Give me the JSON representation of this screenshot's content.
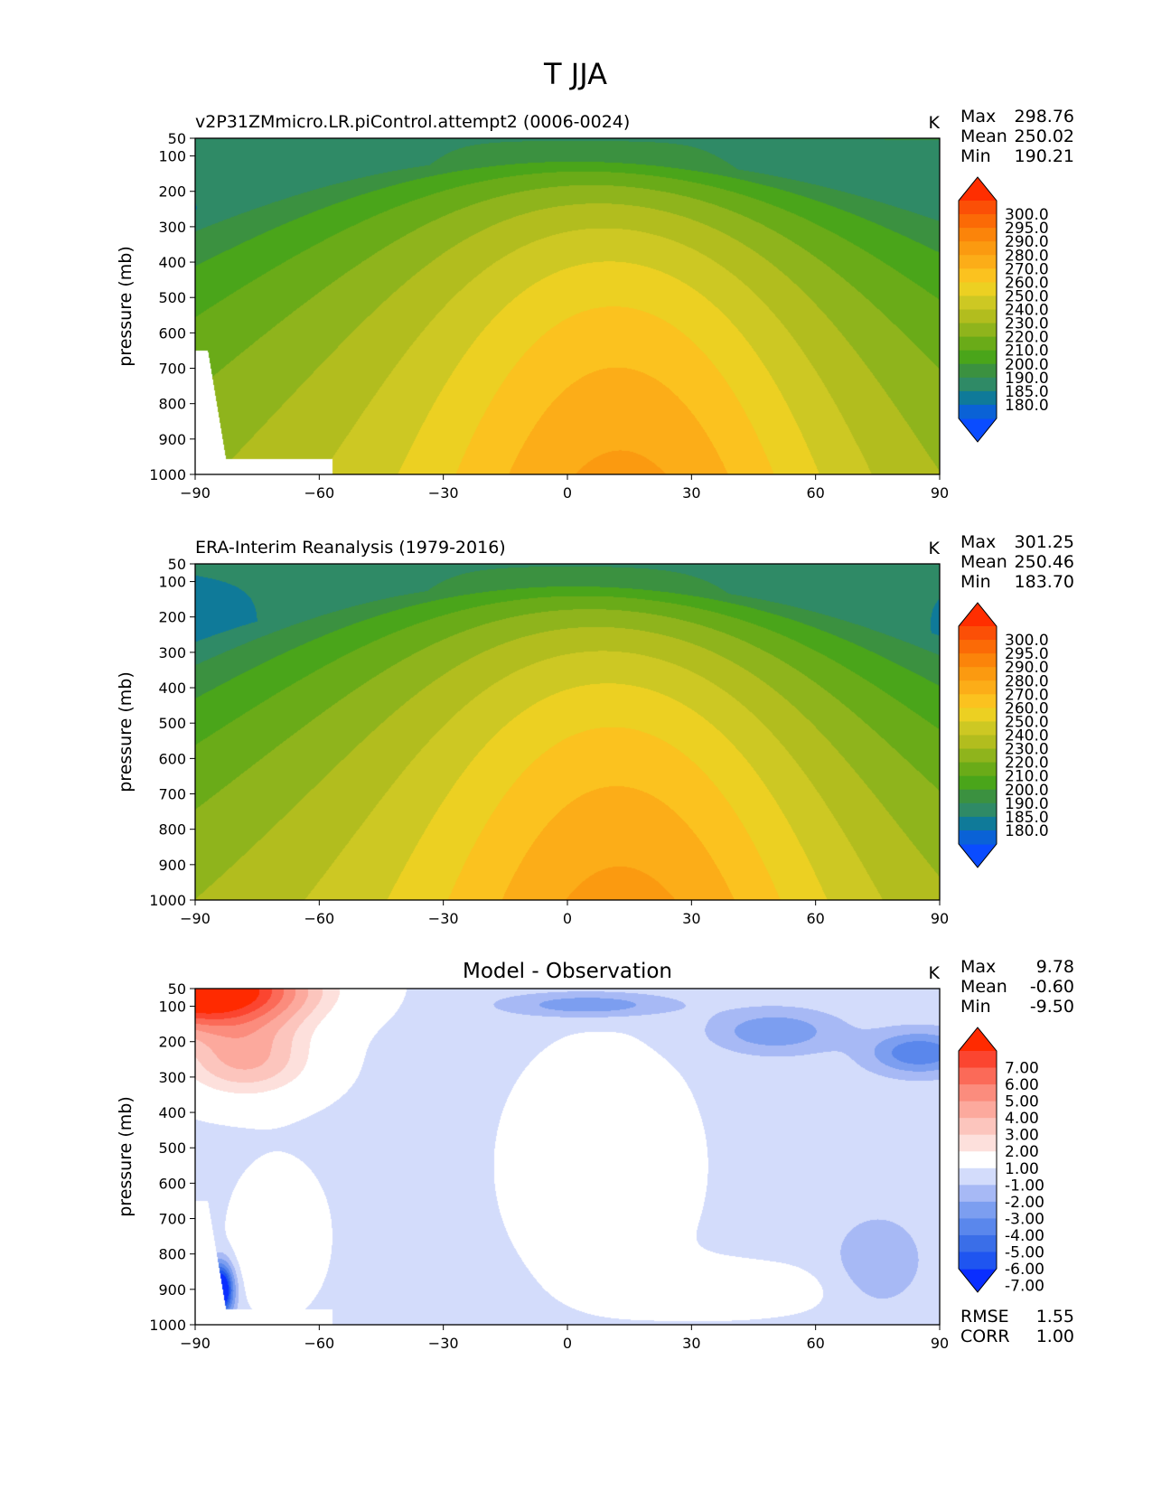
{
  "figure_title": "T JJA",
  "palette": {
    "abs": [
      "#0a4cff",
      "#0a62d6",
      "#0f7a99",
      "#2f8a66",
      "#3b9140",
      "#4aa51a",
      "#6aab18",
      "#8fb41c",
      "#b2bd1e",
      "#cdc823",
      "#ecd022",
      "#fbc21f",
      "#fcad18",
      "#fb9a10",
      "#fb840a",
      "#fb6a06",
      "#fb4f06",
      "#ff2e00"
    ],
    "diff": [
      "#0a2eff",
      "#1f55f0",
      "#3a6ee8",
      "#5a87ec",
      "#7c9ef0",
      "#a7b9f5",
      "#d3dcfb",
      "#ffffff",
      "#fde0dc",
      "#fcc5bd",
      "#fca99d",
      "#fb8c7d",
      "#fb6a58",
      "#fb4530",
      "#ff2a00"
    ]
  },
  "chart_data": [
    {
      "type": "contour",
      "title": "v2P31ZMmicro.LR.piControl.attempt2 (0006-0024)",
      "units": "K",
      "ylabel": "pressure (mb)",
      "xlim": [
        -90,
        90
      ],
      "ylim": [
        1000,
        50
      ],
      "x_ticks": [
        "−90",
        "−60",
        "−30",
        "0",
        "30",
        "60",
        "90"
      ],
      "y_ticks": [
        "50",
        "100",
        "200",
        "300",
        "400",
        "500",
        "600",
        "700",
        "800",
        "900",
        "1000"
      ],
      "stats": {
        "max_label": "Max",
        "max": "298.76",
        "mean_label": "Mean",
        "mean": "250.02",
        "min_label": "Min",
        "min": "190.21"
      },
      "colorbar_levels": [
        "300.0",
        "295.0",
        "290.0",
        "280.0",
        "270.0",
        "260.0",
        "250.0",
        "240.0",
        "230.0",
        "220.0",
        "210.0",
        "200.0",
        "190.0",
        "185.0",
        "180.0"
      ],
      "field": {
        "pole_top": 193,
        "eq_top": 198,
        "trop_eq": 202,
        "surf_eq": 293,
        "surf_pole": 238,
        "ridge_lat": 15
      }
    },
    {
      "type": "contour",
      "title": "ERA-Interim Reanalysis (1979-2016)",
      "units": "K",
      "ylabel": "pressure (mb)",
      "xlim": [
        -90,
        90
      ],
      "ylim": [
        1000,
        50
      ],
      "x_ticks": [
        "−90",
        "−60",
        "−30",
        "0",
        "30",
        "60",
        "90"
      ],
      "y_ticks": [
        "50",
        "100",
        "200",
        "300",
        "400",
        "500",
        "600",
        "700",
        "800",
        "900",
        "1000"
      ],
      "stats": {
        "max_label": "Max",
        "max": "301.25",
        "mean_label": "Mean",
        "mean": "250.46",
        "min_label": "Min",
        "min": "183.70"
      },
      "colorbar_levels": [
        "300.0",
        "295.0",
        "290.0",
        "280.0",
        "270.0",
        "260.0",
        "250.0",
        "240.0",
        "230.0",
        "220.0",
        "210.0",
        "200.0",
        "190.0",
        "185.0",
        "180.0"
      ],
      "field": {
        "pole_top": 188,
        "eq_top": 197,
        "trop_eq": 203,
        "surf_eq": 294,
        "surf_pole": 240,
        "ridge_lat": 15
      }
    },
    {
      "type": "contour",
      "title": "Model - Observation",
      "units": "K",
      "ylabel": "pressure (mb)",
      "xlim": [
        -90,
        90
      ],
      "ylim": [
        1000,
        50
      ],
      "x_ticks": [
        "−90",
        "−60",
        "−30",
        "0",
        "30",
        "60",
        "90"
      ],
      "y_ticks": [
        "50",
        "100",
        "200",
        "300",
        "400",
        "500",
        "600",
        "700",
        "800",
        "900",
        "1000"
      ],
      "stats": {
        "max_label": "Max",
        "max": "9.78",
        "mean_label": "Mean",
        "mean": "-0.60",
        "min_label": "Min",
        "min": "-9.50"
      },
      "colorbar_levels": [
        "7.00",
        "6.00",
        "5.00",
        "4.00",
        "3.00",
        "2.00",
        "1.00",
        "-1.00",
        "-2.00",
        "-3.00",
        "-4.00",
        "-5.00",
        "-6.00",
        "-7.00"
      ],
      "extra_stats": {
        "rmse_label": "RMSE",
        "rmse": "1.55",
        "corr_label": "CORR",
        "corr": "1.00"
      }
    }
  ]
}
